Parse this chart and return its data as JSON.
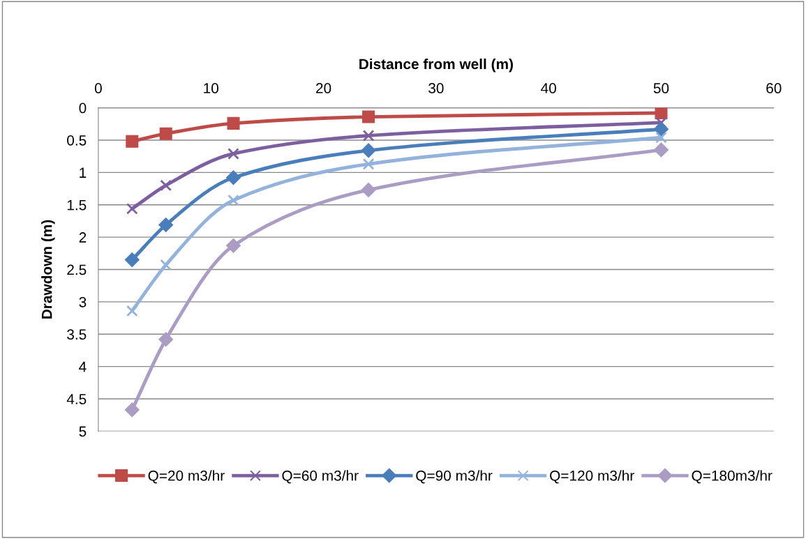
{
  "chart_data": {
    "type": "line",
    "xlabel": "Distance from well (m)",
    "ylabel": "Drawdown (m)",
    "x": [
      3,
      6,
      12,
      24,
      50
    ],
    "series": [
      {
        "name": "Q=20 m3/hr",
        "color": "#be4b48",
        "marker": "square",
        "values": [
          0.52,
          0.4,
          0.24,
          0.14,
          0.08
        ]
      },
      {
        "name": "Q=60 m3/hr",
        "color": "#7d5fa0",
        "marker": "cross",
        "values": [
          1.56,
          1.2,
          0.71,
          0.43,
          0.23
        ]
      },
      {
        "name": "Q=90 m3/hr",
        "color": "#4a7ebb",
        "marker": "diamond",
        "values": [
          2.35,
          1.81,
          1.08,
          0.66,
          0.33
        ]
      },
      {
        "name": "Q=120 m3/hr",
        "color": "#93b3dc",
        "marker": "cross",
        "values": [
          3.14,
          2.43,
          1.43,
          0.87,
          0.46
        ]
      },
      {
        "name": "Q=180m3/hr",
        "color": "#ab9cc4",
        "marker": "diamond",
        "values": [
          4.67,
          3.58,
          2.13,
          1.27,
          0.65
        ]
      }
    ],
    "xlim": [
      0,
      60
    ],
    "xticks": [
      0,
      10,
      20,
      30,
      40,
      50,
      60
    ],
    "ylim": [
      5,
      0
    ],
    "yticks": [
      0,
      0.5,
      1,
      1.5,
      2,
      2.5,
      3,
      3.5,
      4,
      4.5,
      5
    ],
    "grid": "y",
    "legend": "bottom",
    "line_style": "solid"
  }
}
